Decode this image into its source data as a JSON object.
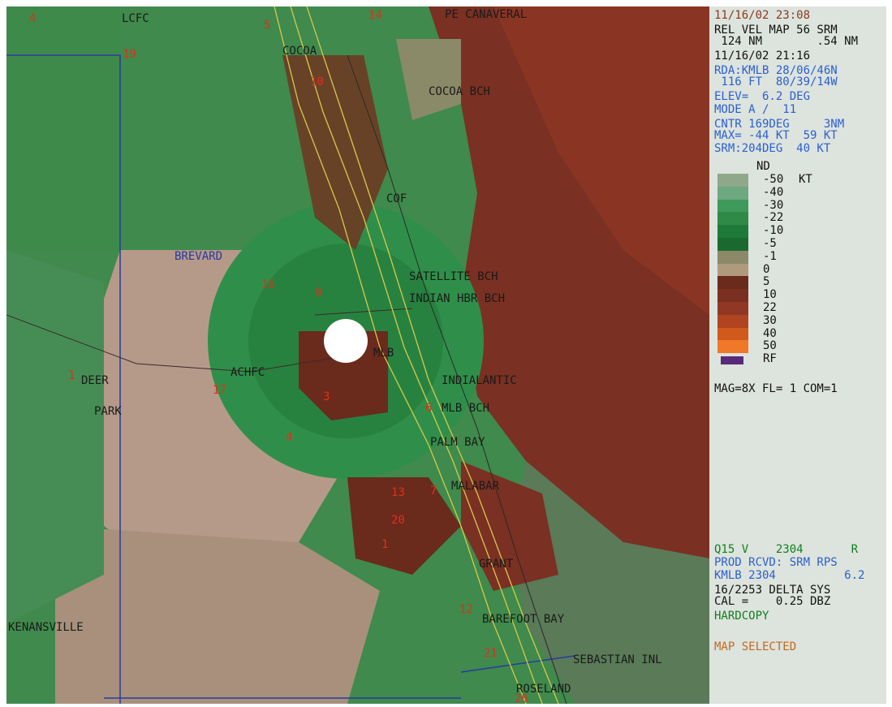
{
  "map": {
    "places": [
      {
        "id": "lcfc",
        "text": "LCFC"
      },
      {
        "id": "cape",
        "text": "PE CANAVERAL"
      },
      {
        "id": "cocoa",
        "text": "COCOA"
      },
      {
        "id": "cocoabch",
        "text": "COCOA BCH"
      },
      {
        "id": "cof",
        "text": "COF"
      },
      {
        "id": "brevard",
        "text": "BREVARD"
      },
      {
        "id": "satellite",
        "text": "SATELLITE BCH"
      },
      {
        "id": "indianhbr",
        "text": "INDIAN HBR BCH"
      },
      {
        "id": "mlb",
        "text": "MLB"
      },
      {
        "id": "deer",
        "text": "DEER"
      },
      {
        "id": "park",
        "text": "PARK"
      },
      {
        "id": "achfc",
        "text": "ACHFC"
      },
      {
        "id": "indialantic",
        "text": "INDIALANTIC"
      },
      {
        "id": "mlbbch",
        "text": "MLB BCH"
      },
      {
        "id": "palmbay",
        "text": "PALM BAY"
      },
      {
        "id": "malabar",
        "text": "MALABAR"
      },
      {
        "id": "grant",
        "text": "GRANT"
      },
      {
        "id": "kenansville",
        "text": "KENANSVILLE"
      },
      {
        "id": "barefoot",
        "text": "BAREFOOT BAY"
      },
      {
        "id": "sebastian",
        "text": "SEBASTIAN INL"
      },
      {
        "id": "roseland",
        "text": "ROSELAND"
      }
    ],
    "markers": [
      "4",
      "19",
      "5",
      "14",
      "10",
      "16",
      "9",
      "17",
      "3",
      "4",
      "6",
      "7",
      "13",
      "20",
      "1",
      "12",
      "21",
      "26",
      "1"
    ]
  },
  "panel": {
    "datetime": "11/16/02 23:08",
    "product": "REL VEL MAP 56 SRM",
    "range": " 124 NM        .54 NM",
    "vol_time": "11/16/02 21:16",
    "rda": "RDA:KMLB 28/06/46N",
    "height": " 116 FT  80/39/14W",
    "elev": "ELEV=  6.2 DEG",
    "mode": "MODE A /  11",
    "cntr": "CNTR 169DEG     3NM",
    "max": "MAX= -44 KT  59 KT",
    "srm": "SRM:204DEG  40 KT",
    "legend_nd": "ND",
    "legend_unit": "KT",
    "legend": [
      {
        "label": "-50",
        "color": "#8fa88a"
      },
      {
        "label": "-40",
        "color": "#6ea880"
      },
      {
        "label": "-30",
        "color": "#3d9a5a"
      },
      {
        "label": "-22",
        "color": "#2f8a48"
      },
      {
        "label": "-10",
        "color": "#1e7a38"
      },
      {
        "label": "-5",
        "color": "#1a6a30"
      },
      {
        "label": "-1",
        "color": "#8a8a68"
      },
      {
        "label": "0",
        "color": "#b09a7e"
      },
      {
        "label": "5",
        "color": "#6a2a1c"
      },
      {
        "label": "10",
        "color": "#7a3020"
      },
      {
        "label": "22",
        "color": "#903824"
      },
      {
        "label": "30",
        "color": "#b04420"
      },
      {
        "label": "40",
        "color": "#d05a1c"
      },
      {
        "label": "50",
        "color": "#f07828"
      },
      {
        "label": "RF",
        "color": "#5a2a7a"
      }
    ],
    "mag": "MAG=8X FL= 1 COM=1",
    "q15": "Q15 V    2304       R",
    "prod_rcvd": "PROD RCVD: SRM RPS",
    "kmlb": "KMLB 2304          6.2",
    "delta": "16/2253 DELTA SYS",
    "cal": "CAL =    0.25 DBZ",
    "hardcopy": "HARDCOPY",
    "map_selected": "MAP SELECTED"
  }
}
